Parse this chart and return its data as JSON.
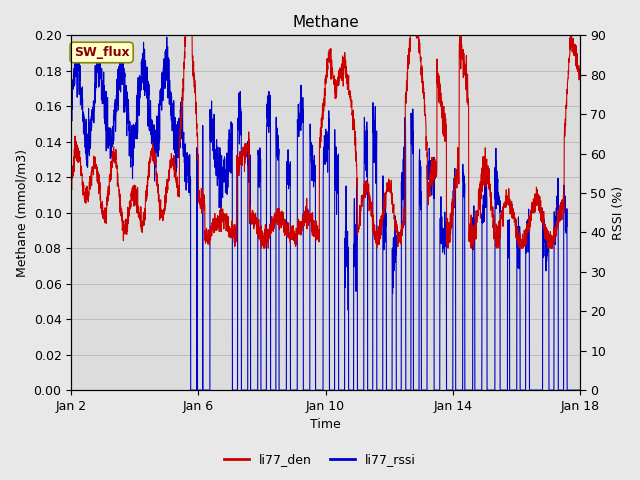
{
  "title": "Methane",
  "xlabel": "Time",
  "ylabel_left": "Methane (mmol/m3)",
  "ylabel_right": "RSSI (%)",
  "legend_label1": "li77_den",
  "legend_label2": "li77_rssi",
  "annotation_text": "SW_flux",
  "annotation_bg": "#ffffcc",
  "annotation_border": "#888800",
  "left_ylim": [
    0.0,
    0.2
  ],
  "right_ylim": [
    0,
    90
  ],
  "left_yticks": [
    0.0,
    0.02,
    0.04,
    0.06,
    0.08,
    0.1,
    0.12,
    0.14,
    0.16,
    0.18,
    0.2
  ],
  "right_yticks": [
    0,
    10,
    20,
    30,
    40,
    50,
    60,
    70,
    80,
    90
  ],
  "xtick_labels": [
    "Jan 2",
    "Jan 6",
    "Jan 10",
    "Jan 14",
    "Jan 18"
  ],
  "xtick_pos": [
    0,
    4,
    8,
    12,
    16
  ],
  "xlim": [
    0,
    16
  ],
  "color_red": "#cc0000",
  "color_blue": "#0000cc",
  "bg_color": "#e8e8e8",
  "plot_bg": "#dcdcdc",
  "linewidth": 0.8,
  "title_fontsize": 11,
  "axis_fontsize": 9,
  "tick_fontsize": 9,
  "legend_fontsize": 9,
  "annot_fontsize": 9
}
